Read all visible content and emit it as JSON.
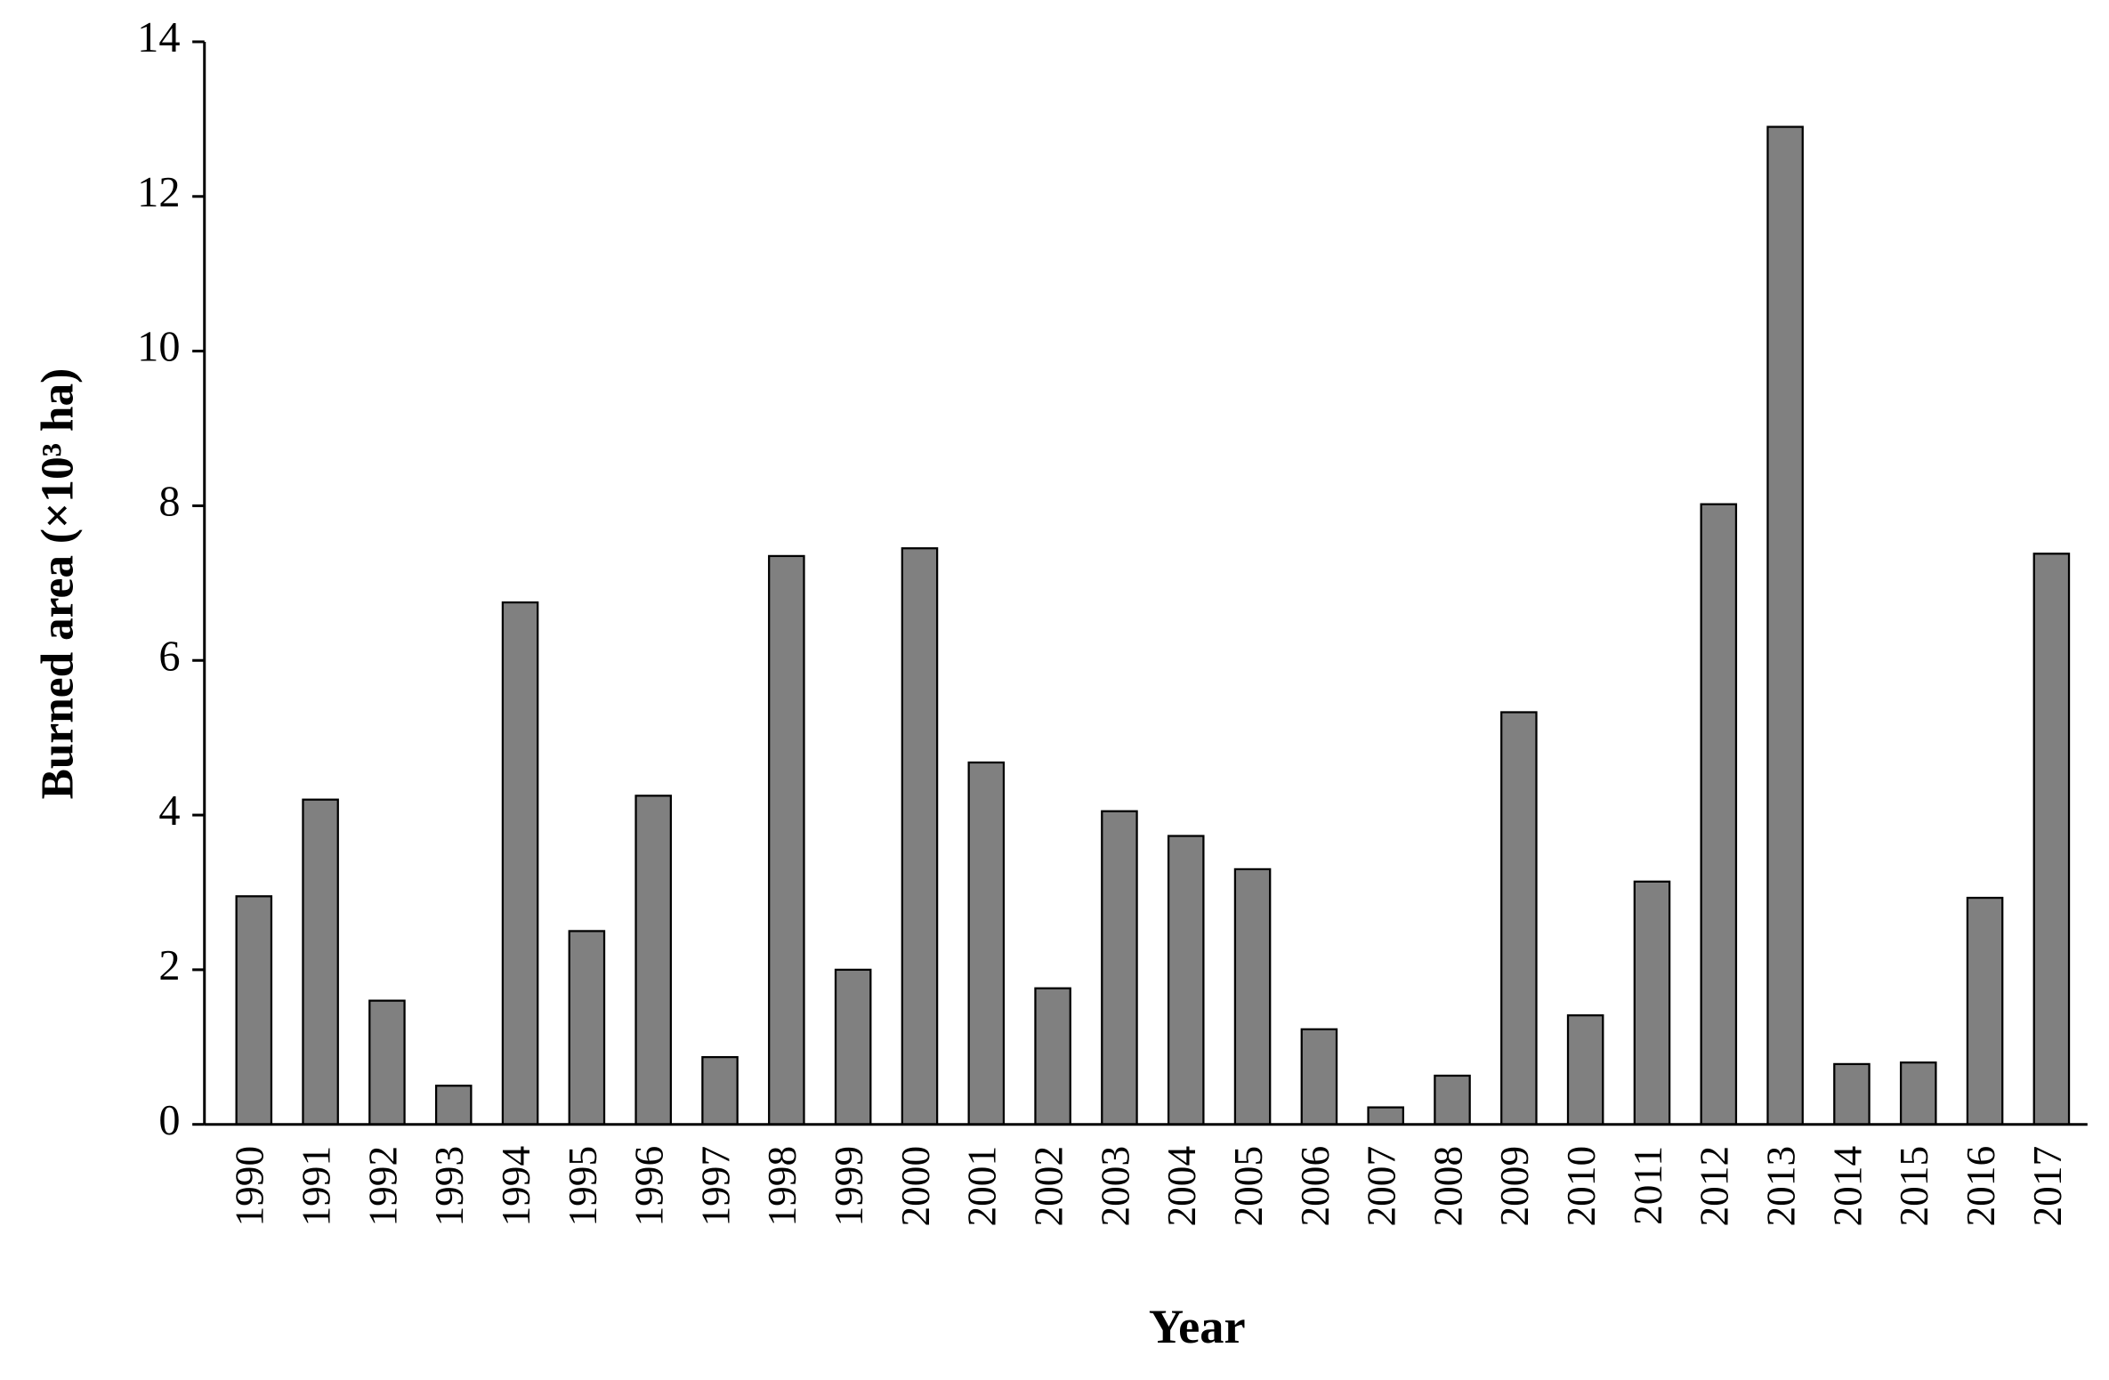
{
  "chart_data": {
    "type": "bar",
    "x_label": "Year",
    "y_label": "Burned area (×10³ ha)",
    "categories": [
      "1990",
      "1991",
      "1992",
      "1993",
      "1994",
      "1995",
      "1996",
      "1997",
      "1998",
      "1999",
      "2000",
      "2001",
      "2002",
      "2003",
      "2004",
      "2005",
      "2006",
      "2007",
      "2008",
      "2009",
      "2010",
      "2011",
      "2012",
      "2013",
      "2014",
      "2015",
      "2016",
      "2017"
    ],
    "values": [
      2.95,
      4.2,
      1.6,
      0.5,
      6.75,
      2.5,
      4.25,
      0.87,
      7.35,
      2.0,
      7.45,
      4.68,
      1.76,
      4.05,
      3.73,
      3.3,
      1.23,
      0.22,
      0.63,
      5.33,
      1.41,
      3.14,
      8.02,
      12.9,
      0.78,
      0.8,
      2.93,
      7.38
    ],
    "color": "#808080",
    "ylim": [
      0,
      14
    ],
    "yticks": [
      0,
      2,
      4,
      6,
      8,
      10,
      12,
      14
    ],
    "grid": false
  }
}
